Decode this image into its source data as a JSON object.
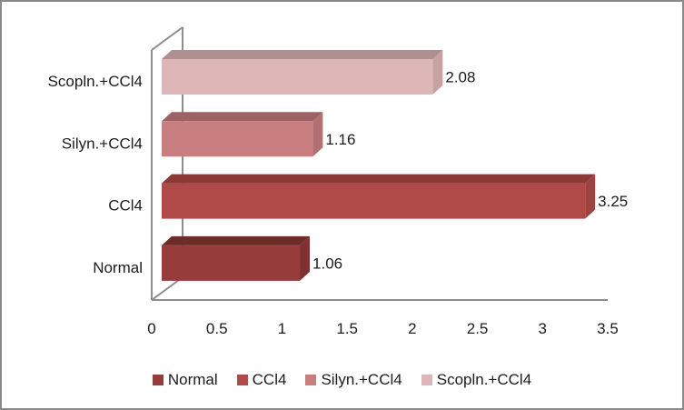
{
  "chart_data": {
    "type": "bar",
    "style": "3d-horizontal-clustered-bar",
    "orientation": "horizontal",
    "title": "",
    "xlabel": "",
    "ylabel": "",
    "grid": false,
    "xlim": [
      0,
      3.5
    ],
    "x_ticks": [
      "0",
      "0.5",
      "1",
      "1.5",
      "2",
      "2.5",
      "3",
      "3.5"
    ],
    "categories_top_to_bottom": [
      "Scopln.+CCl4",
      "Silyn.+CCl4",
      "CCl4",
      "Normal"
    ],
    "series": [
      {
        "name": "Scopln.+CCl4",
        "value": 2.08,
        "label": "2.08",
        "color_face": "#DDB6B7",
        "color_top": "#AF8F90",
        "color_side": "#C6A2A3"
      },
      {
        "name": "Silyn.+CCl4",
        "value": 1.16,
        "label": "1.16",
        "color_face": "#C87E7E",
        "color_top": "#9D6263",
        "color_side": "#B17071"
      },
      {
        "name": "CCl4",
        "value": 3.25,
        "label": "3.25",
        "color_face": "#B04A48",
        "color_top": "#8A3937",
        "color_side": "#9E4240"
      },
      {
        "name": "Normal",
        "value": 1.06,
        "label": "1.06",
        "color_face": "#963D3C",
        "color_top": "#6E2B2A",
        "color_side": "#7D3130"
      }
    ],
    "legend": {
      "position": "bottom",
      "entries": [
        "Normal",
        "CCl4",
        "Silyn.+CCl4",
        "Scopln.+CCl4"
      ]
    },
    "colors": {
      "axis_line": "#8c8c8c",
      "wall_line": "#8c8c8c",
      "text": "#1c1c1c",
      "background": "#ffffff",
      "frame_border": "#8a8a8a"
    }
  }
}
